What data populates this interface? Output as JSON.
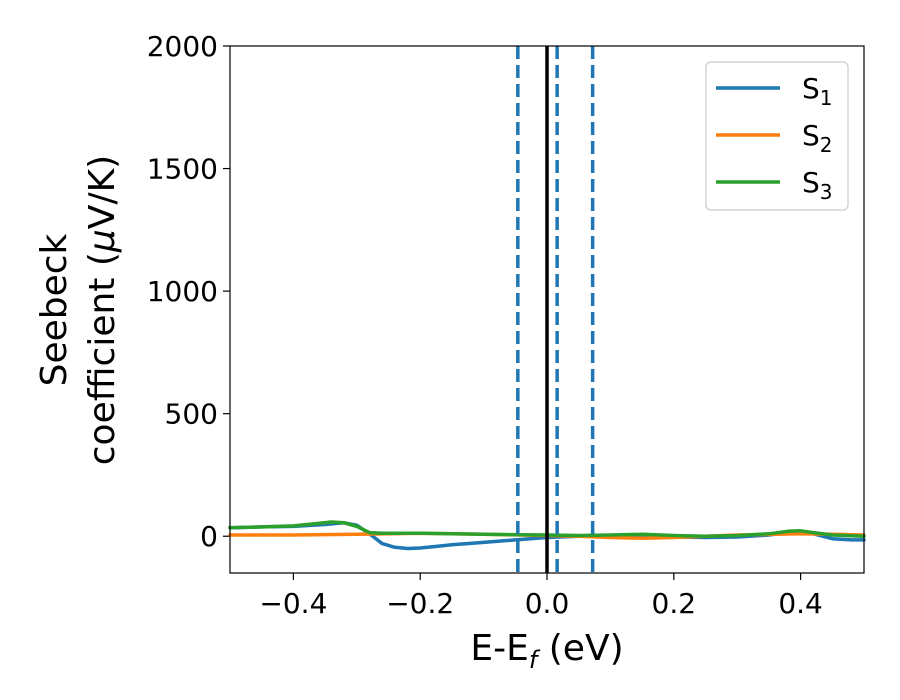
{
  "chart_data": {
    "type": "line",
    "xlabel": {
      "main": "E-E",
      "sub": "f",
      "tail": " (eV)"
    },
    "ylabel": {
      "line1": "Seebeck",
      "line2_pre": "coefficient  (",
      "mu": "μ",
      "line2_post": "V/K)"
    },
    "xlim": [
      -0.5,
      0.5
    ],
    "ylim": [
      -150,
      2000
    ],
    "xticks": [
      -0.4,
      -0.2,
      0.0,
      0.2,
      0.4
    ],
    "xtick_labels": [
      "−0.4",
      "−0.2",
      "0.0",
      "0.2",
      "0.4"
    ],
    "yticks": [
      0,
      500,
      1000,
      1500,
      2000
    ],
    "ytick_labels": [
      "0",
      "500",
      "1000",
      "1500",
      "2000"
    ],
    "grid": false,
    "legend_position": "top-right",
    "series": [
      {
        "name": "S",
        "sub": "1",
        "color": "#1f77b4",
        "x": [
          -0.5,
          -0.45,
          -0.4,
          -0.35,
          -0.32,
          -0.3,
          -0.28,
          -0.26,
          -0.24,
          -0.22,
          -0.2,
          -0.18,
          -0.15,
          -0.1,
          -0.05,
          0.0,
          0.05,
          0.1,
          0.15,
          0.2,
          0.25,
          0.3,
          0.35,
          0.38,
          0.4,
          0.42,
          0.45,
          0.48,
          0.5
        ],
        "y": [
          35,
          38,
          40,
          48,
          55,
          45,
          10,
          -30,
          -45,
          -50,
          -48,
          -43,
          -35,
          -25,
          -15,
          -5,
          0,
          2,
          0,
          -3,
          -5,
          -3,
          5,
          15,
          20,
          10,
          -10,
          -15,
          -15
        ]
      },
      {
        "name": "S",
        "sub": "2",
        "color": "#ff7f0e",
        "x": [
          -0.5,
          -0.4,
          -0.3,
          -0.2,
          -0.1,
          0.0,
          0.05,
          0.1,
          0.15,
          0.2,
          0.25,
          0.3,
          0.4,
          0.45,
          0.5
        ],
        "y": [
          5,
          5,
          8,
          12,
          8,
          3,
          0,
          -5,
          -8,
          -5,
          0,
          5,
          10,
          8,
          5
        ]
      },
      {
        "name": "S",
        "sub": "3",
        "color": "#2ca02c",
        "x": [
          -0.5,
          -0.45,
          -0.4,
          -0.37,
          -0.34,
          -0.32,
          -0.3,
          -0.28,
          -0.26,
          -0.2,
          -0.1,
          0.0,
          0.05,
          0.1,
          0.15,
          0.2,
          0.25,
          0.3,
          0.35,
          0.38,
          0.4,
          0.42,
          0.45,
          0.5
        ],
        "y": [
          35,
          38,
          42,
          50,
          58,
          55,
          40,
          15,
          12,
          12,
          8,
          5,
          3,
          5,
          8,
          3,
          0,
          3,
          10,
          20,
          22,
          15,
          5,
          0
        ]
      }
    ],
    "vlines": [
      {
        "x": 0.0,
        "style": "solid",
        "color": "#000000"
      },
      {
        "x": -0.046,
        "style": "dashed",
        "color": "#1f77b4"
      },
      {
        "x": 0.016,
        "style": "dashed",
        "color": "#1f77b4"
      },
      {
        "x": 0.072,
        "style": "dashed",
        "color": "#1f77b4"
      }
    ]
  }
}
